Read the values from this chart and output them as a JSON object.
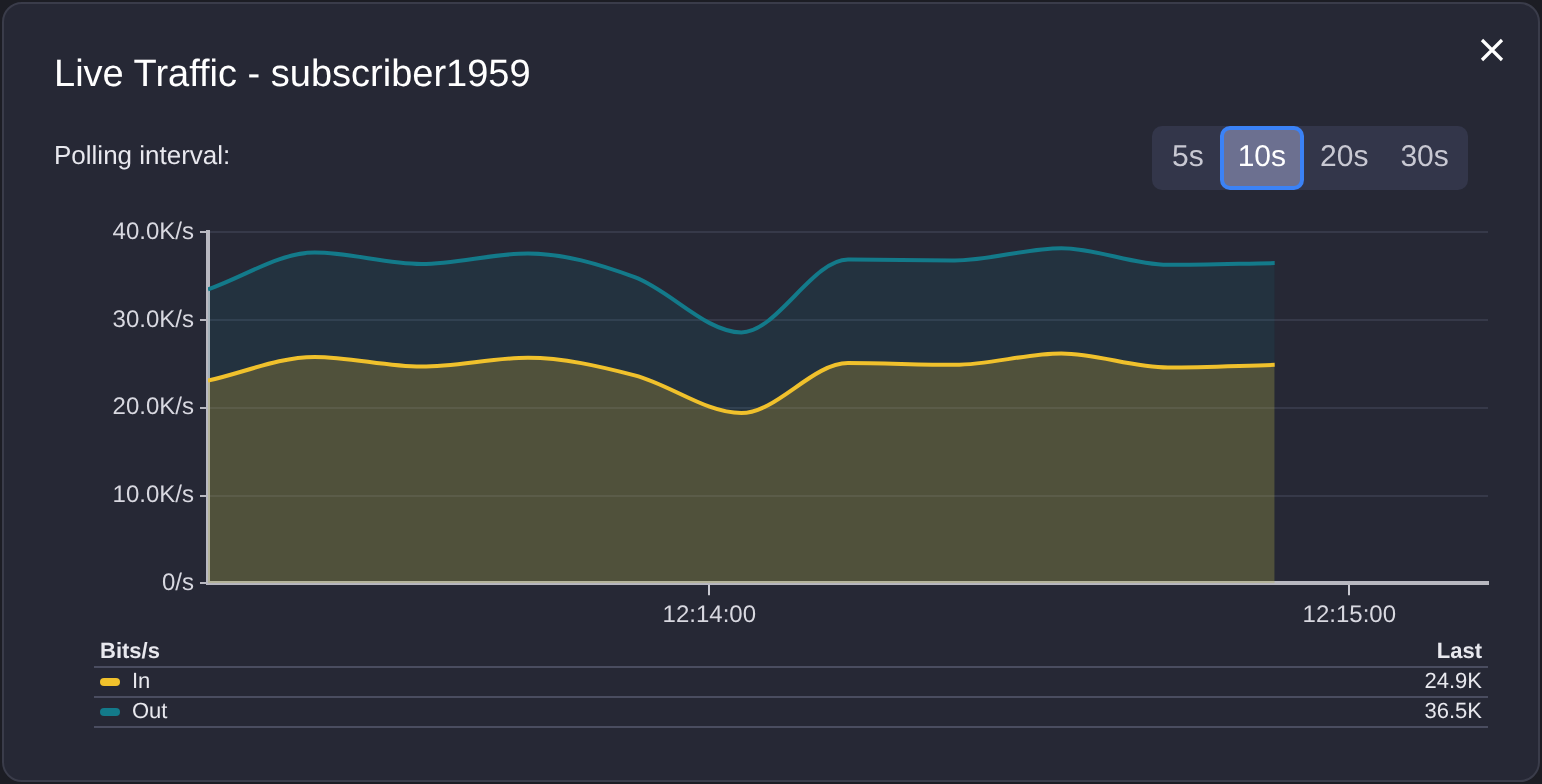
{
  "chart_data": {
    "type": "area",
    "title": "Live Traffic - subscriber1959",
    "legend_title": "Bits/s",
    "legend": "bottom",
    "grid": "y",
    "annotations": [
      "Polling interval:",
      "5s",
      "10s",
      "20s",
      "30s",
      "Last",
      "24.9K",
      "36.5K"
    ],
    "x": [
      12.220278,
      12.223056,
      12.225833,
      12.228611,
      12.231389,
      12.234167,
      12.236944,
      12.239722,
      12.2425,
      12.245278,
      12.248056
    ],
    "xlim": [
      12.220278,
      12.253611
    ],
    "xticks": [
      {
        "value": 12.233333,
        "label": "12:14:00"
      },
      {
        "value": 12.25,
        "label": "12:15:00"
      }
    ],
    "ylim": [
      0,
      40
    ],
    "yticks": [
      {
        "value": 0,
        "label": "0/s"
      },
      {
        "value": 10,
        "label": "10.0K/s"
      },
      {
        "value": 20,
        "label": "20.0K/s"
      },
      {
        "value": 30,
        "label": "30.0K/s"
      },
      {
        "value": 40,
        "label": "40.0K/s"
      }
    ],
    "series": [
      {
        "name": "In",
        "color": "#f0c12c",
        "values": [
          23.1,
          25.8,
          24.7,
          25.7,
          23.7,
          19.4,
          25.1,
          24.9,
          26.2,
          24.6,
          24.9
        ]
      },
      {
        "name": "Out",
        "color": "#137a8a",
        "values": [
          33.5,
          37.7,
          36.4,
          37.6,
          34.9,
          28.6,
          36.9,
          36.8,
          38.2,
          36.3,
          36.5
        ]
      }
    ]
  }
}
